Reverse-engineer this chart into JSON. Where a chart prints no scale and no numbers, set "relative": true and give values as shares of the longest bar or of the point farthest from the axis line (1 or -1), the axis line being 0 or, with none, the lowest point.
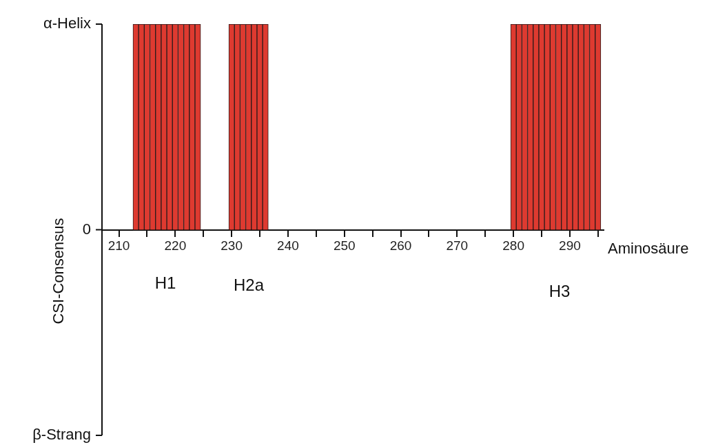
{
  "chart_data": {
    "type": "bar",
    "xlabel": "Aminosäure",
    "ylabel": "CSI-Consensus",
    "relative": true,
    "x": [
      213,
      214,
      215,
      216,
      217,
      218,
      219,
      220,
      221,
      222,
      223,
      224,
      230,
      231,
      232,
      233,
      234,
      235,
      236,
      280,
      281,
      282,
      283,
      284,
      285,
      286,
      287,
      288,
      289,
      290,
      291,
      292,
      293,
      294,
      295
    ],
    "values": [
      1,
      1,
      1,
      1,
      1,
      1,
      1,
      1,
      1,
      1,
      1,
      1,
      1,
      1,
      1,
      1,
      1,
      1,
      1,
      1,
      1,
      1,
      1,
      1,
      1,
      1,
      1,
      1,
      1,
      1,
      1,
      1,
      1,
      1,
      1
    ],
    "color": "#de3a30",
    "xlim": [
      207,
      296
    ],
    "xticks": [
      210,
      {
        "value": 215,
        "label": null
      },
      220,
      {
        "value": 225,
        "label": null
      },
      230,
      {
        "value": 235,
        "label": null
      },
      240,
      {
        "value": 245,
        "label": null
      },
      250,
      {
        "value": 255,
        "label": null
      },
      260,
      {
        "value": 265,
        "label": null
      },
      270,
      {
        "value": 275,
        "label": null
      },
      280,
      {
        "value": 285,
        "label": null
      },
      290,
      {
        "value": 295,
        "label": null
      }
    ],
    "annotations": [
      "α-Helix",
      "0",
      "β-Strang",
      "H1",
      "H2a",
      "H3"
    ],
    "grid": false,
    "legend": false
  }
}
